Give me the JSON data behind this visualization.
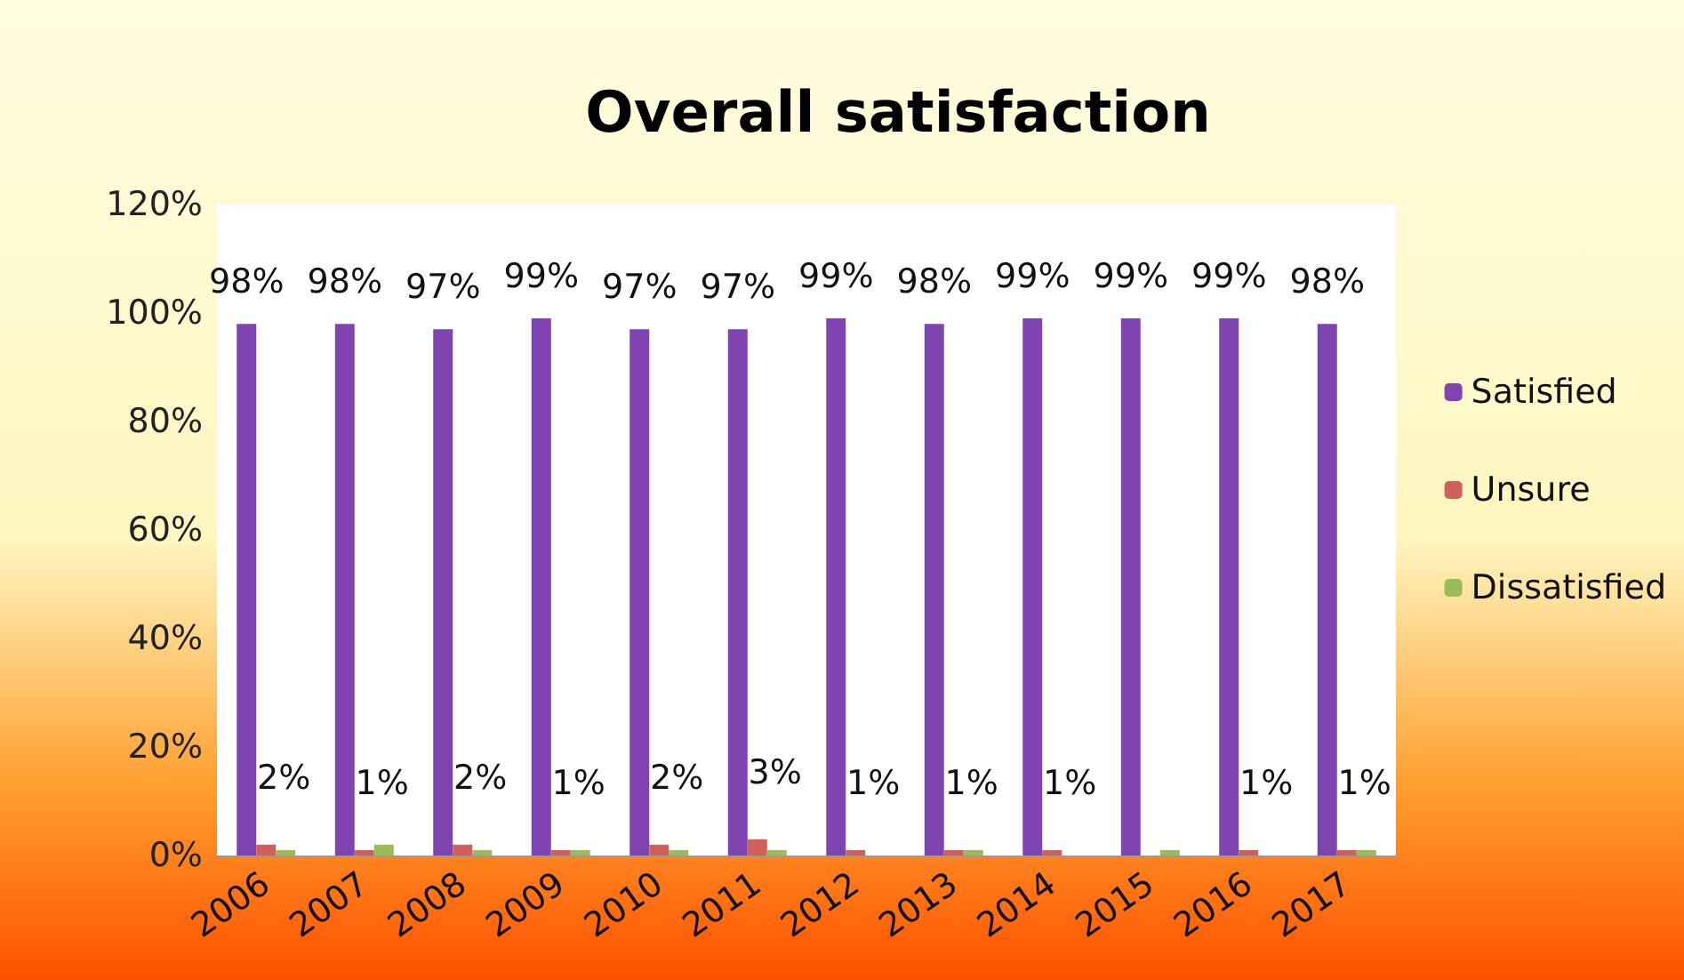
{
  "chart_data": {
    "type": "bar",
    "title": "Overall satisfaction",
    "categories": [
      "2006",
      "2007",
      "2008",
      "2009",
      "2010",
      "2011",
      "2012",
      "2013",
      "2014",
      "2015",
      "2016",
      "2017"
    ],
    "series": [
      {
        "name": "Satisfied",
        "color": "#7f44b0",
        "values": [
          98,
          98,
          97,
          99,
          97,
          97,
          99,
          98,
          99,
          99,
          99,
          98
        ],
        "value_labels": [
          "98%",
          "98%",
          "97%",
          "99%",
          "97%",
          "97%",
          "99%",
          "98%",
          "99%",
          "99%",
          "99%",
          "98%"
        ]
      },
      {
        "name": "Unsure",
        "color": "#d0605a",
        "values": [
          2,
          1,
          2,
          1,
          2,
          3,
          1,
          1,
          1,
          null,
          1,
          1
        ],
        "value_labels": [
          "2%",
          "1%",
          "2%",
          "1%",
          "2%",
          "3%",
          "1%",
          "1%",
          "1%",
          null,
          "1%",
          "1%"
        ]
      },
      {
        "name": "Dissatisfied",
        "color": "#9bbb59",
        "values": [
          1,
          2,
          1,
          1,
          1,
          1,
          null,
          1,
          null,
          1,
          null,
          1
        ]
      }
    ],
    "ylim": [
      0,
      120
    ],
    "yticks": [
      {
        "value": 0,
        "label": "0%"
      },
      {
        "value": 20,
        "label": "20%"
      },
      {
        "value": 40,
        "label": "40%"
      },
      {
        "value": 60,
        "label": "60%"
      },
      {
        "value": 80,
        "label": "80%"
      },
      {
        "value": 100,
        "label": "100%"
      },
      {
        "value": 120,
        "label": "120%"
      }
    ],
    "grid": false,
    "legend": "right"
  }
}
